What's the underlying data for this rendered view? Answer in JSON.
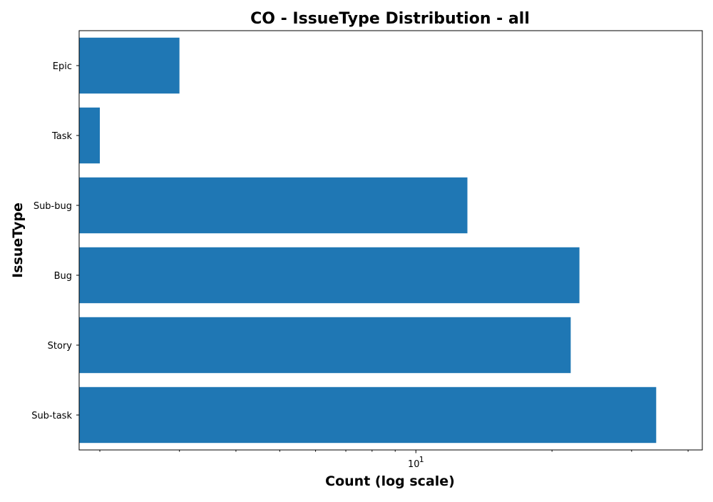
{
  "chart_data": {
    "type": "bar",
    "orientation": "horizontal",
    "title": "CO - IssueType Distribution - all",
    "xlabel": "Count (log scale)",
    "ylabel": "IssueType",
    "xscale": "log",
    "xlim": [
      1.8,
      43
    ],
    "x_major_ticks": [
      {
        "value": 10,
        "base": "10",
        "exp": "1"
      }
    ],
    "x_minor_ticks": [
      2,
      3,
      4,
      5,
      6,
      7,
      8,
      9,
      20,
      30,
      40
    ],
    "categories": [
      "Epic",
      "Task",
      "Sub-bug",
      "Bug",
      "Story",
      "Sub-task"
    ],
    "values": [
      3,
      2,
      13,
      23,
      22,
      34
    ],
    "bar_color": "#1f77b4",
    "grid": false,
    "legend": "none"
  }
}
